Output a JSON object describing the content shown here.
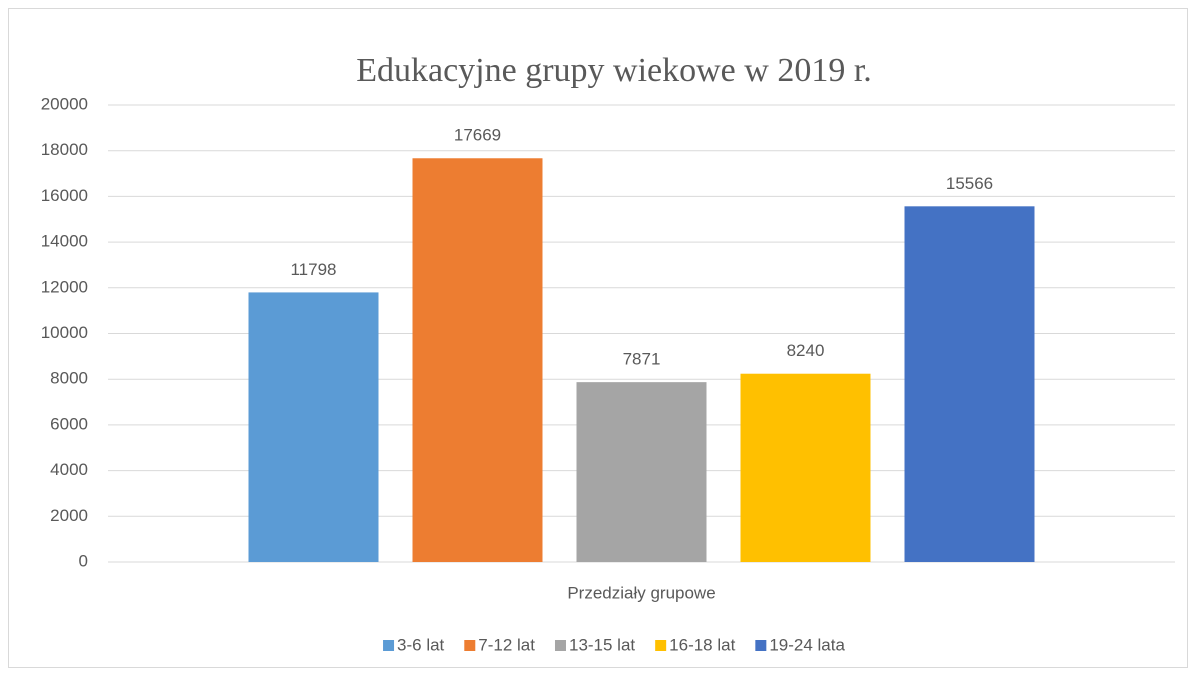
{
  "chart_data": {
    "type": "bar",
    "title": "Edukacyjne grupy wiekowe w 2019 r.",
    "categories": [
      "Przedziały grupowe"
    ],
    "series": [
      {
        "name": "3-6 lat",
        "color": "#5b9bd5",
        "values": [
          11798
        ]
      },
      {
        "name": "7-12 lat",
        "color": "#ed7d31",
        "values": [
          17669
        ]
      },
      {
        "name": "13-15 lat",
        "color": "#a5a5a5",
        "values": [
          7871
        ]
      },
      {
        "name": "16-18 lat",
        "color": "#ffc000",
        "values": [
          8240
        ]
      },
      {
        "name": "19-24 lata",
        "color": "#4472c4",
        "values": [
          15566
        ]
      }
    ],
    "ylim": [
      0,
      20000
    ],
    "yticks": [
      0,
      2000,
      4000,
      6000,
      8000,
      10000,
      12000,
      14000,
      16000,
      18000,
      20000
    ],
    "grid": true,
    "legend": "bottom"
  }
}
